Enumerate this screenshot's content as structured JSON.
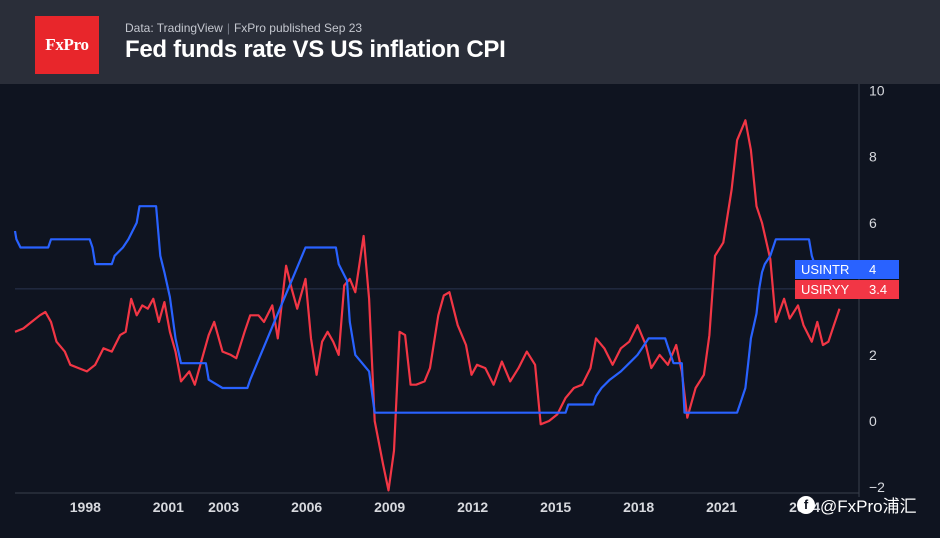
{
  "header": {
    "logo_text": "FxPro",
    "source": "Data: TradingView",
    "published": "FxPro published Sep 23",
    "title": "Fed funds rate VS US inflation CPI"
  },
  "watermark": {
    "icon": "facebook-icon",
    "text": "@FxPro浦汇"
  },
  "chart_data": {
    "type": "line",
    "title": "Fed funds rate VS US inflation CPI",
    "y_ticks": [
      "10",
      "8",
      "6",
      "4",
      "2",
      "0",
      "−2"
    ],
    "y_tick_values": [
      10,
      8,
      6,
      4,
      2,
      0,
      -2
    ],
    "x_ticks": [
      "1998",
      "2001",
      "2003",
      "2006",
      "2009",
      "2012",
      "2015",
      "2018",
      "2021",
      "2024"
    ],
    "x_tick_years": [
      1998,
      2001,
      2003,
      2006,
      2009,
      2012,
      2015,
      2018,
      2021,
      2024
    ],
    "ylim": [
      -2.3,
      10.2
    ],
    "xlim": [
      1996.0,
      2026.0
    ],
    "grid": false,
    "reference_line": 4.0,
    "series": [
      {
        "name": "USINTR",
        "color": "#2962ff",
        "last_value": "4",
        "points": [
          [
            1996.0,
            5.75
          ],
          [
            1996.05,
            5.5
          ],
          [
            1996.2,
            5.25
          ],
          [
            1997.2,
            5.25
          ],
          [
            1997.3,
            5.5
          ],
          [
            1998.7,
            5.5
          ],
          [
            1998.8,
            5.25
          ],
          [
            1998.9,
            4.75
          ],
          [
            1999.5,
            4.75
          ],
          [
            1999.6,
            5.0
          ],
          [
            1999.9,
            5.25
          ],
          [
            2000.1,
            5.5
          ],
          [
            2000.4,
            6.0
          ],
          [
            2000.5,
            6.5
          ],
          [
            2001.1,
            6.5
          ],
          [
            2001.15,
            6.0
          ],
          [
            2001.25,
            5.0
          ],
          [
            2001.4,
            4.5
          ],
          [
            2001.6,
            3.75
          ],
          [
            2001.8,
            2.5
          ],
          [
            2002.0,
            1.75
          ],
          [
            2002.9,
            1.75
          ],
          [
            2003.0,
            1.25
          ],
          [
            2003.5,
            1.0
          ],
          [
            2004.4,
            1.0
          ],
          [
            2004.5,
            1.25
          ],
          [
            2005.0,
            2.25
          ],
          [
            2005.5,
            3.25
          ],
          [
            2006.0,
            4.25
          ],
          [
            2006.5,
            5.25
          ],
          [
            2007.6,
            5.25
          ],
          [
            2007.7,
            4.75
          ],
          [
            2008.0,
            4.25
          ],
          [
            2008.1,
            3.0
          ],
          [
            2008.3,
            2.0
          ],
          [
            2008.8,
            1.5
          ],
          [
            2009.0,
            0.25
          ],
          [
            2015.9,
            0.25
          ],
          [
            2016.0,
            0.5
          ],
          [
            2016.9,
            0.5
          ],
          [
            2017.0,
            0.75
          ],
          [
            2017.2,
            1.0
          ],
          [
            2017.5,
            1.25
          ],
          [
            2017.9,
            1.5
          ],
          [
            2018.2,
            1.75
          ],
          [
            2018.5,
            2.0
          ],
          [
            2018.7,
            2.25
          ],
          [
            2018.9,
            2.5
          ],
          [
            2019.5,
            2.5
          ],
          [
            2019.6,
            2.25
          ],
          [
            2019.7,
            2.0
          ],
          [
            2019.8,
            1.75
          ],
          [
            2020.1,
            1.75
          ],
          [
            2020.15,
            1.0
          ],
          [
            2020.2,
            0.25
          ],
          [
            2022.1,
            0.25
          ],
          [
            2022.2,
            0.5
          ],
          [
            2022.4,
            1.0
          ],
          [
            2022.5,
            1.75
          ],
          [
            2022.6,
            2.5
          ],
          [
            2022.8,
            3.25
          ],
          [
            2022.9,
            4.0
          ],
          [
            2023.0,
            4.5
          ],
          [
            2023.1,
            4.75
          ],
          [
            2023.3,
            5.0
          ],
          [
            2023.5,
            5.5
          ],
          [
            2024.7,
            5.5
          ],
          [
            2024.8,
            5.0
          ],
          [
            2024.9,
            4.75
          ],
          [
            2025.0,
            4.5
          ],
          [
            2025.4,
            4.5
          ],
          [
            2025.5,
            4.25
          ],
          [
            2025.6,
            4.0
          ],
          [
            2025.9,
            4.0
          ]
        ]
      },
      {
        "name": "USIRYY",
        "color": "#f23645",
        "last_value": "3.4",
        "points": [
          [
            1996.0,
            2.7
          ],
          [
            1996.3,
            2.8
          ],
          [
            1996.6,
            3.0
          ],
          [
            1996.9,
            3.2
          ],
          [
            1997.1,
            3.3
          ],
          [
            1997.3,
            3.0
          ],
          [
            1997.5,
            2.4
          ],
          [
            1997.8,
            2.1
          ],
          [
            1998.0,
            1.7
          ],
          [
            1998.3,
            1.6
          ],
          [
            1998.6,
            1.5
          ],
          [
            1998.9,
            1.7
          ],
          [
            1999.2,
            2.2
          ],
          [
            1999.5,
            2.1
          ],
          [
            1999.8,
            2.6
          ],
          [
            2000.0,
            2.7
          ],
          [
            2000.2,
            3.7
          ],
          [
            2000.4,
            3.2
          ],
          [
            2000.6,
            3.5
          ],
          [
            2000.8,
            3.4
          ],
          [
            2001.0,
            3.7
          ],
          [
            2001.2,
            3.0
          ],
          [
            2001.4,
            3.6
          ],
          [
            2001.6,
            2.7
          ],
          [
            2001.8,
            2.1
          ],
          [
            2002.0,
            1.2
          ],
          [
            2002.3,
            1.5
          ],
          [
            2002.5,
            1.1
          ],
          [
            2002.8,
            2.0
          ],
          [
            2003.0,
            2.6
          ],
          [
            2003.2,
            3.0
          ],
          [
            2003.5,
            2.1
          ],
          [
            2003.8,
            2.0
          ],
          [
            2004.0,
            1.9
          ],
          [
            2004.3,
            2.7
          ],
          [
            2004.5,
            3.2
          ],
          [
            2004.8,
            3.2
          ],
          [
            2005.0,
            3.0
          ],
          [
            2005.3,
            3.5
          ],
          [
            2005.5,
            2.5
          ],
          [
            2005.8,
            4.7
          ],
          [
            2006.0,
            4.0
          ],
          [
            2006.2,
            3.4
          ],
          [
            2006.5,
            4.3
          ],
          [
            2006.7,
            2.5
          ],
          [
            2006.9,
            1.4
          ],
          [
            2007.1,
            2.4
          ],
          [
            2007.3,
            2.7
          ],
          [
            2007.5,
            2.4
          ],
          [
            2007.7,
            2.0
          ],
          [
            2007.9,
            4.1
          ],
          [
            2008.1,
            4.3
          ],
          [
            2008.3,
            3.9
          ],
          [
            2008.6,
            5.6
          ],
          [
            2008.8,
            3.7
          ],
          [
            2009.0,
            0.0
          ],
          [
            2009.3,
            -1.3
          ],
          [
            2009.5,
            -2.1
          ],
          [
            2009.7,
            -0.9
          ],
          [
            2009.9,
            2.7
          ],
          [
            2010.1,
            2.6
          ],
          [
            2010.3,
            1.1
          ],
          [
            2010.5,
            1.1
          ],
          [
            2010.8,
            1.2
          ],
          [
            2011.0,
            1.6
          ],
          [
            2011.3,
            3.2
          ],
          [
            2011.5,
            3.8
          ],
          [
            2011.7,
            3.9
          ],
          [
            2012.0,
            2.9
          ],
          [
            2012.3,
            2.3
          ],
          [
            2012.5,
            1.4
          ],
          [
            2012.7,
            1.7
          ],
          [
            2013.0,
            1.6
          ],
          [
            2013.3,
            1.1
          ],
          [
            2013.6,
            1.8
          ],
          [
            2013.9,
            1.2
          ],
          [
            2014.2,
            1.6
          ],
          [
            2014.5,
            2.1
          ],
          [
            2014.8,
            1.7
          ],
          [
            2015.0,
            -0.1
          ],
          [
            2015.3,
            0.0
          ],
          [
            2015.6,
            0.2
          ],
          [
            2015.9,
            0.7
          ],
          [
            2016.2,
            1.0
          ],
          [
            2016.5,
            1.1
          ],
          [
            2016.8,
            1.6
          ],
          [
            2017.0,
            2.5
          ],
          [
            2017.3,
            2.2
          ],
          [
            2017.6,
            1.7
          ],
          [
            2017.9,
            2.2
          ],
          [
            2018.2,
            2.4
          ],
          [
            2018.5,
            2.9
          ],
          [
            2018.8,
            2.3
          ],
          [
            2019.0,
            1.6
          ],
          [
            2019.3,
            2.0
          ],
          [
            2019.6,
            1.7
          ],
          [
            2019.9,
            2.3
          ],
          [
            2020.1,
            1.5
          ],
          [
            2020.3,
            0.1
          ],
          [
            2020.6,
            1.0
          ],
          [
            2020.9,
            1.4
          ],
          [
            2021.1,
            2.6
          ],
          [
            2021.3,
            5.0
          ],
          [
            2021.6,
            5.4
          ],
          [
            2021.9,
            7.0
          ],
          [
            2022.1,
            8.5
          ],
          [
            2022.4,
            9.1
          ],
          [
            2022.6,
            8.2
          ],
          [
            2022.8,
            6.5
          ],
          [
            2023.0,
            6.0
          ],
          [
            2023.3,
            4.9
          ],
          [
            2023.5,
            3.0
          ],
          [
            2023.8,
            3.7
          ],
          [
            2024.0,
            3.1
          ],
          [
            2024.3,
            3.5
          ],
          [
            2024.5,
            2.9
          ],
          [
            2024.8,
            2.4
          ],
          [
            2025.0,
            3.0
          ],
          [
            2025.2,
            2.3
          ],
          [
            2025.4,
            2.4
          ],
          [
            2025.6,
            2.9
          ],
          [
            2025.8,
            3.4
          ]
        ]
      }
    ]
  }
}
